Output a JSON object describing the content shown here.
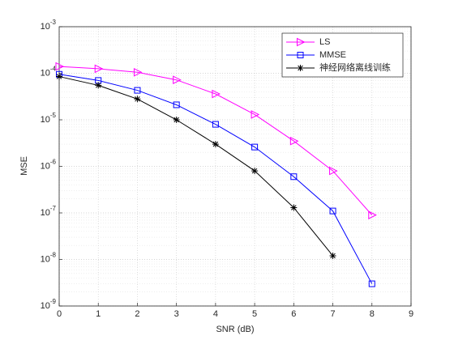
{
  "chart_data": {
    "type": "line",
    "xlabel": "SNR (dB)",
    "ylabel": "MSE",
    "xlim": [
      0,
      9
    ],
    "xticks": [
      0,
      1,
      2,
      3,
      4,
      5,
      6,
      7,
      8,
      9
    ],
    "ylim": [
      1e-09,
      0.001
    ],
    "yticks": [
      {
        "value": 1e-09,
        "label": "10^-9"
      },
      {
        "value": 1e-08,
        "label": "10^-8"
      },
      {
        "value": 1e-07,
        "label": "10^-7"
      },
      {
        "value": 1e-06,
        "label": "10^-6"
      },
      {
        "value": 1e-05,
        "label": "10^-5"
      },
      {
        "value": 0.0001,
        "label": "10^-4"
      },
      {
        "value": 0.001,
        "label": "10^-3"
      }
    ],
    "log_y": true,
    "grid": true,
    "minor_grid": true,
    "legend": "northeast",
    "series": [
      {
        "name": "LS",
        "color": "#ff00ff",
        "marker": "triangle-right",
        "x": [
          0,
          1,
          2,
          3,
          4,
          5,
          6,
          7,
          8
        ],
        "values": [
          0.00014,
          0.000125,
          0.000105,
          7.2e-05,
          3.6e-05,
          1.3e-05,
          3.5e-06,
          8e-07,
          9e-08
        ]
      },
      {
        "name": "MMSE",
        "color": "#0000ff",
        "marker": "square",
        "x": [
          0,
          1,
          2,
          3,
          4,
          5,
          6,
          7,
          8
        ],
        "values": [
          9.5e-05,
          7e-05,
          4.3e-05,
          2.1e-05,
          8e-06,
          2.6e-06,
          6e-07,
          1.1e-07,
          3e-09
        ]
      },
      {
        "name": "神经网络离线训练",
        "color": "#000000",
        "marker": "asterisk",
        "x": [
          0,
          1,
          2,
          3,
          4,
          5,
          6,
          7
        ],
        "values": [
          8.5e-05,
          5.5e-05,
          2.8e-05,
          1e-05,
          3e-06,
          8e-07,
          1.3e-07,
          1.2e-08
        ]
      }
    ]
  }
}
